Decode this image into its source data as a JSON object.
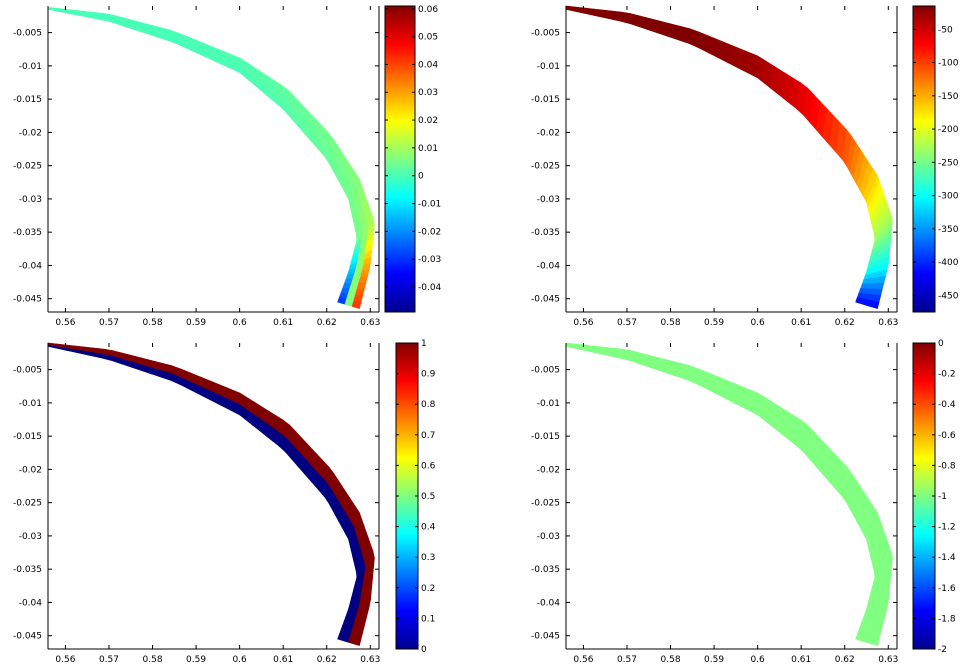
{
  "figure": {
    "layout": "2x2 grid of filled band plots, each with a jet colorbar",
    "colormap": "jet",
    "background": "#ffffff",
    "axis_color": "#000000"
  },
  "chart_data": [
    {
      "type": "heatmap",
      "title": "",
      "xlabel": "",
      "ylabel": "",
      "xlim": [
        0.556,
        0.632
      ],
      "ylim": [
        -0.047,
        -0.001
      ],
      "xticks": [
        0.56,
        0.57,
        0.58,
        0.59,
        0.6,
        0.61,
        0.62,
        0.63
      ],
      "xtick_labels": [
        "0.56",
        "0.57",
        "0.58",
        "0.59",
        "0.6",
        "0.61",
        "0.62",
        "0.63"
      ],
      "yticks": [
        -0.005,
        -0.01,
        -0.015,
        -0.02,
        -0.025,
        -0.03,
        -0.035,
        -0.04,
        -0.045
      ],
      "ytick_labels": [
        "-0.005",
        "-0.01",
        "-0.015",
        "-0.02",
        "-0.025",
        "-0.03",
        "-0.035",
        "-0.04",
        "-0.045"
      ],
      "band": {
        "inner_x": [
          0.556,
          0.57,
          0.585,
          0.6,
          0.61,
          0.62,
          0.625,
          0.627,
          0.625,
          0.6225
        ],
        "inner_y": [
          -0.0015,
          -0.0033,
          -0.0065,
          -0.011,
          -0.0165,
          -0.024,
          -0.03,
          -0.036,
          -0.041,
          -0.0455
        ],
        "outer_x": [
          0.556,
          0.57,
          0.585,
          0.6,
          0.611,
          0.621,
          0.6275,
          0.631,
          0.63,
          0.6275
        ],
        "outer_y": [
          -0.0012,
          -0.0022,
          -0.0048,
          -0.0088,
          -0.0135,
          -0.0205,
          -0.027,
          -0.0335,
          -0.04,
          -0.0465
        ],
        "inner_values": [
          0.0,
          0.0,
          0.0,
          0.0,
          0.001,
          0.003,
          0.004,
          0.004,
          -0.025,
          -0.048
        ],
        "outer_values": [
          0.0,
          0.0,
          0.0,
          0.001,
          0.003,
          0.005,
          0.007,
          0.012,
          0.04,
          0.06
        ]
      },
      "colorbar": {
        "range": [
          -0.049,
          0.061
        ],
        "ticks": [
          0.06,
          0.05,
          0.04,
          0.03,
          0.02,
          0.01,
          0,
          -0.01,
          -0.02,
          -0.03,
          -0.04
        ],
        "tick_labels": [
          "0.06",
          "0.05",
          "0.04",
          "0.03",
          "0.02",
          "0.01",
          "0",
          "-0.01",
          "-0.02",
          "-0.03",
          "-0.04"
        ]
      }
    },
    {
      "type": "heatmap",
      "title": "",
      "xlabel": "",
      "ylabel": "",
      "xlim": [
        0.556,
        0.632
      ],
      "ylim": [
        -0.047,
        -0.001
      ],
      "xticks": [
        0.56,
        0.57,
        0.58,
        0.59,
        0.6,
        0.61,
        0.62,
        0.63
      ],
      "xtick_labels": [
        "0.56",
        "0.57",
        "0.58",
        "0.59",
        "0.6",
        "0.61",
        "0.62",
        "0.63"
      ],
      "yticks": [
        -0.005,
        -0.01,
        -0.015,
        -0.02,
        -0.025,
        -0.03,
        -0.035,
        -0.04,
        -0.045
      ],
      "ytick_labels": [
        "-0.005",
        "-0.01",
        "-0.015",
        "-0.02",
        "-0.025",
        "-0.03",
        "-0.035",
        "-0.04",
        "-0.045"
      ],
      "band": {
        "inner_x": [
          0.556,
          0.57,
          0.585,
          0.6,
          0.61,
          0.62,
          0.625,
          0.627,
          0.625,
          0.6225
        ],
        "inner_y": [
          -0.0015,
          -0.0035,
          -0.0068,
          -0.0118,
          -0.017,
          -0.0245,
          -0.0305,
          -0.036,
          -0.041,
          -0.0455
        ],
        "outer_x": [
          0.556,
          0.57,
          0.585,
          0.6,
          0.611,
          0.621,
          0.6275,
          0.631,
          0.63,
          0.6275
        ],
        "outer_y": [
          -0.001,
          -0.002,
          -0.0045,
          -0.0085,
          -0.013,
          -0.02,
          -0.0265,
          -0.033,
          -0.04,
          -0.0465
        ],
        "inner_values": [
          -5,
          -8,
          -15,
          -30,
          -60,
          -110,
          -170,
          -230,
          -300,
          -420
        ],
        "outer_values": [
          -5,
          -8,
          -15,
          -30,
          -60,
          -110,
          -170,
          -230,
          -300,
          -420
        ]
      },
      "colorbar": {
        "range": [
          -475,
          -15
        ],
        "ticks": [
          -50,
          -100,
          -150,
          -200,
          -250,
          -300,
          -350,
          -400,
          -450
        ],
        "tick_labels": [
          "-50",
          "-100",
          "-150",
          "-200",
          "-250",
          "-300",
          "-350",
          "-400",
          "-450"
        ]
      }
    },
    {
      "type": "heatmap",
      "title": "",
      "xlabel": "",
      "ylabel": "",
      "xlim": [
        0.556,
        0.632
      ],
      "ylim": [
        -0.047,
        -0.001
      ],
      "xticks": [
        0.56,
        0.57,
        0.58,
        0.59,
        0.6,
        0.61,
        0.62,
        0.63
      ],
      "xtick_labels": [
        "0.56",
        "0.57",
        "0.58",
        "0.59",
        "0.6",
        "0.61",
        "0.62",
        "0.63"
      ],
      "yticks": [
        -0.005,
        -0.01,
        -0.015,
        -0.02,
        -0.025,
        -0.03,
        -0.035,
        -0.04,
        -0.045
      ],
      "ytick_labels": [
        "-0.005",
        "-0.01",
        "-0.015",
        "-0.02",
        "-0.025",
        "-0.03",
        "-0.035",
        "-0.04",
        "-0.045"
      ],
      "band": {
        "inner_x": [
          0.556,
          0.57,
          0.585,
          0.6,
          0.61,
          0.62,
          0.625,
          0.627,
          0.625,
          0.6225
        ],
        "inner_y": [
          -0.0015,
          -0.0035,
          -0.0068,
          -0.0118,
          -0.017,
          -0.0245,
          -0.0305,
          -0.036,
          -0.041,
          -0.0455
        ],
        "outer_x": [
          0.556,
          0.57,
          0.585,
          0.6,
          0.611,
          0.621,
          0.6275,
          0.631,
          0.63,
          0.6275
        ],
        "outer_y": [
          -0.001,
          -0.002,
          -0.0045,
          -0.0085,
          -0.013,
          -0.02,
          -0.0265,
          -0.033,
          -0.04,
          -0.0465
        ],
        "inner_values": [
          0,
          0,
          0,
          0,
          0,
          0,
          0,
          0,
          0,
          0
        ],
        "outer_values": [
          1,
          1,
          1,
          1,
          1,
          1,
          1,
          1,
          1,
          1
        ],
        "split": "binary"
      },
      "colorbar": {
        "range": [
          0,
          1
        ],
        "ticks": [
          1,
          0.9,
          0.8,
          0.7,
          0.6,
          0.5,
          0.4,
          0.3,
          0.2,
          0.1,
          0
        ],
        "tick_labels": [
          "1",
          "0.9",
          "0.8",
          "0.7",
          "0.6",
          "0.5",
          "0.4",
          "0.3",
          "0.2",
          "0.1",
          "0"
        ]
      }
    },
    {
      "type": "heatmap",
      "title": "",
      "xlabel": "",
      "ylabel": "",
      "xlim": [
        0.556,
        0.632
      ],
      "ylim": [
        -0.047,
        -0.001
      ],
      "xticks": [
        0.56,
        0.57,
        0.58,
        0.59,
        0.6,
        0.61,
        0.62,
        0.63
      ],
      "xtick_labels": [
        "0.56",
        "0.57",
        "0.58",
        "0.59",
        "0.6",
        "0.61",
        "0.62",
        "0.63"
      ],
      "yticks": [
        -0.005,
        -0.01,
        -0.015,
        -0.02,
        -0.025,
        -0.03,
        -0.035,
        -0.04,
        -0.045
      ],
      "ytick_labels": [
        "-0.005",
        "-0.01",
        "-0.015",
        "-0.02",
        "-0.025",
        "-0.03",
        "-0.035",
        "-0.04",
        "-0.045"
      ],
      "band": {
        "inner_x": [
          0.556,
          0.57,
          0.585,
          0.6,
          0.61,
          0.62,
          0.625,
          0.627,
          0.625,
          0.6225
        ],
        "inner_y": [
          -0.0015,
          -0.0035,
          -0.0068,
          -0.0118,
          -0.017,
          -0.0245,
          -0.0305,
          -0.036,
          -0.041,
          -0.0455
        ],
        "outer_x": [
          0.556,
          0.57,
          0.585,
          0.6,
          0.611,
          0.621,
          0.6275,
          0.631,
          0.63,
          0.6275
        ],
        "outer_y": [
          -0.001,
          -0.002,
          -0.0045,
          -0.0085,
          -0.013,
          -0.02,
          -0.0265,
          -0.033,
          -0.04,
          -0.0465
        ],
        "inner_values": [
          -1,
          -1,
          -1,
          -1,
          -1,
          -1,
          -1,
          -1,
          -1,
          -1
        ],
        "outer_values": [
          -1,
          -1,
          -1,
          -1,
          -1,
          -1,
          -1,
          -1,
          -1,
          -1
        ]
      },
      "colorbar": {
        "range": [
          -2,
          0
        ],
        "ticks": [
          0,
          -0.2,
          -0.4,
          -0.6,
          -0.8,
          -1,
          -1.2,
          -1.4,
          -1.6,
          -1.8,
          -2
        ],
        "tick_labels": [
          "0",
          "-0.2",
          "-0.4",
          "-0.6",
          "-0.8",
          "-1",
          "-1.2",
          "-1.4",
          "-1.6",
          "-1.8",
          "-2"
        ]
      }
    }
  ]
}
